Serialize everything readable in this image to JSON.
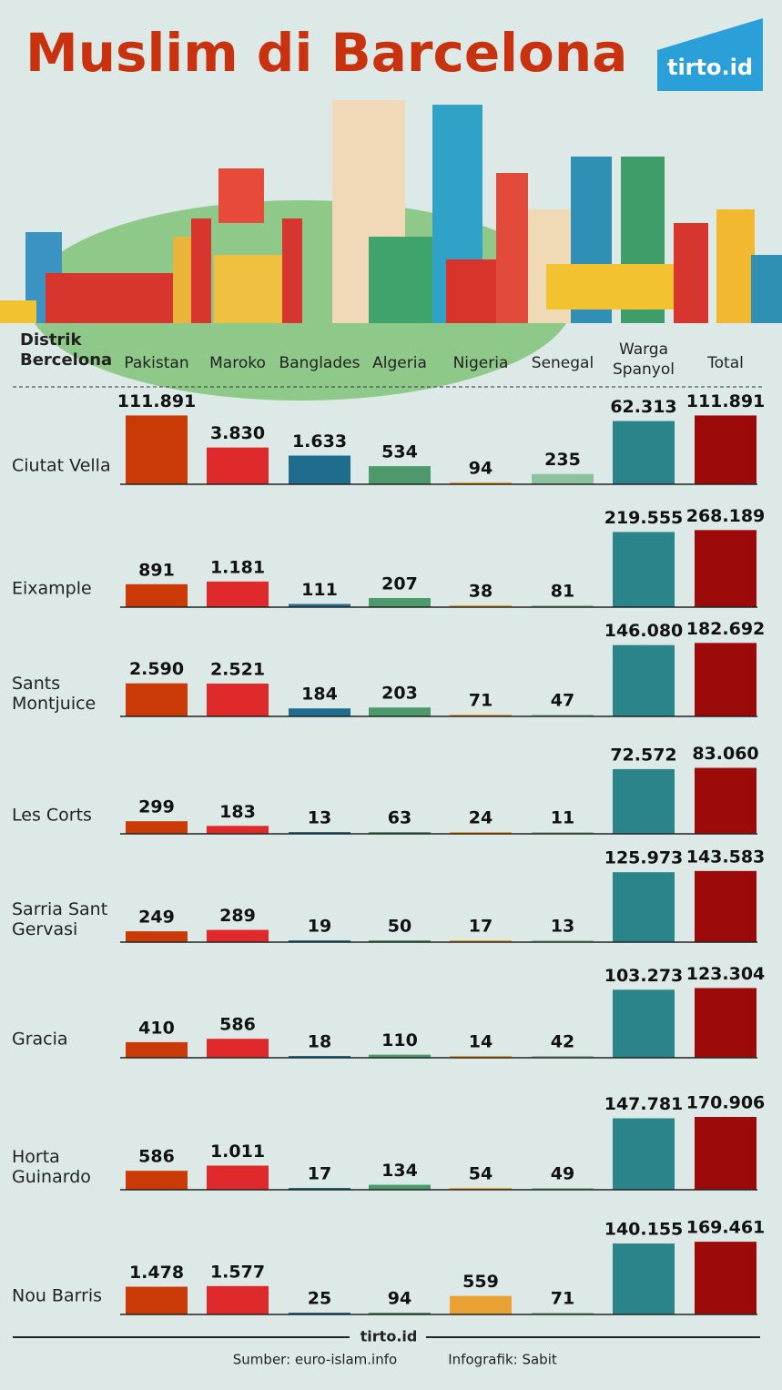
{
  "chart_data": {
    "type": "bar",
    "title": "Muslim di Barcelona",
    "logo": "tirto.id",
    "row_header": "Distrik\nBercelona",
    "log_scale": true,
    "categories": [
      "Ciutat Vella",
      "Eixample",
      "Sants\nMontjuice",
      "Les Corts",
      "Sarria Sant\nGervasi",
      "Gracia",
      "Horta\nGuinardo",
      "Nou Barris"
    ],
    "series": [
      {
        "name": "Pakistan",
        "color": "#c93a06",
        "values": [
          111891,
          891,
          2590,
          299,
          249,
          410,
          586,
          1478
        ],
        "value_labels": [
          "111.891",
          "891",
          "2.590",
          "299",
          "249",
          "410",
          "586",
          "1.478"
        ]
      },
      {
        "name": "Maroko",
        "color": "#e0292b",
        "values": [
          3830,
          1181,
          2521,
          183,
          289,
          586,
          1011,
          1577
        ],
        "value_labels": [
          "3.830",
          "1.181",
          "2.521",
          "183",
          "289",
          "586",
          "1.011",
          "1.577"
        ]
      },
      {
        "name": "Banglades",
        "color": "#1f6d8e",
        "values": [
          1633,
          111,
          184,
          13,
          19,
          18,
          17,
          25
        ],
        "value_labels": [
          "1.633",
          "111",
          "184",
          "13",
          "19",
          "18",
          "17",
          "25"
        ]
      },
      {
        "name": "Algeria",
        "color": "#4c9a6c",
        "values": [
          534,
          207,
          203,
          63,
          50,
          110,
          134,
          94
        ],
        "value_labels": [
          "534",
          "207",
          "203",
          "63",
          "50",
          "110",
          "134",
          "94"
        ]
      },
      {
        "name": "Nigeria",
        "color": "#e8a132",
        "values": [
          94,
          38,
          71,
          24,
          17,
          14,
          54,
          559
        ],
        "value_labels": [
          "94",
          "38",
          "71",
          "24",
          "17",
          "14",
          "54",
          "559"
        ]
      },
      {
        "name": "Senegal",
        "color": "#8dc29e",
        "values": [
          235,
          81,
          47,
          11,
          13,
          42,
          49,
          71
        ],
        "value_labels": [
          "235",
          "81",
          "47",
          "11",
          "13",
          "42",
          "49",
          "71"
        ]
      },
      {
        "name": "Warga\nSpanyol",
        "color": "#2b8489",
        "values": [
          62313,
          219555,
          146080,
          72572,
          125973,
          103273,
          147781,
          140155
        ],
        "value_labels": [
          "62.313",
          "219.555",
          "146.080",
          "72.572",
          "125.973",
          "103.273",
          "147.781",
          "140.155"
        ]
      },
      {
        "name": "Total",
        "color": "#9c0a0a",
        "values": [
          111891,
          268189,
          182692,
          83060,
          143583,
          123304,
          170906,
          169461
        ],
        "value_labels": [
          "111.891",
          "268.189",
          "182.692",
          "83.060",
          "143.583",
          "123.304",
          "170.906",
          "169.461"
        ]
      }
    ],
    "footer_logo": "tirto.id",
    "source": "Sumber: euro-islam.info",
    "credit": "Infografik: Sabit"
  }
}
